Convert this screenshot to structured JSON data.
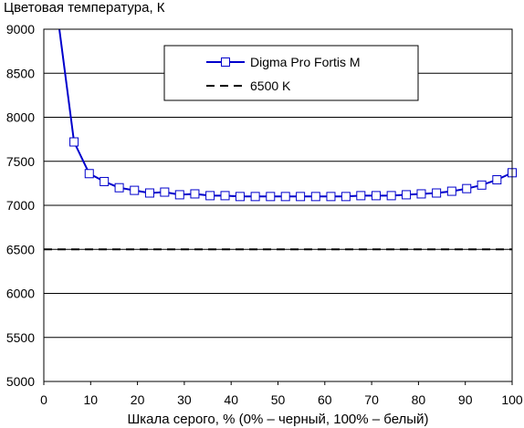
{
  "chart_data": {
    "type": "line",
    "title": "Цветовая температура, К",
    "xlabel": "Шкала серого, % (0% – черный, 100% – белый)",
    "ylabel": "",
    "xlim": [
      0,
      100
    ],
    "ylim": [
      5000,
      9000
    ],
    "x_ticks": [
      0,
      10,
      20,
      30,
      40,
      50,
      60,
      70,
      80,
      90,
      100
    ],
    "y_ticks": [
      5000,
      5500,
      6000,
      6500,
      7000,
      7500,
      8000,
      8500,
      9000
    ],
    "grid": "horizontal",
    "legend_position": "top-center",
    "series": [
      {
        "name": "Digma Pro Fortis M",
        "color": "#0000cc",
        "marker": "square-open",
        "x": [
          3.2,
          6.45,
          9.7,
          12.9,
          16.1,
          19.35,
          22.6,
          25.8,
          29.0,
          32.25,
          35.5,
          38.7,
          41.9,
          45.15,
          48.4,
          51.6,
          54.8,
          58.05,
          61.3,
          64.5,
          67.7,
          70.95,
          74.2,
          77.4,
          80.6,
          83.85,
          87.1,
          90.3,
          93.5,
          96.75,
          100
        ],
        "y": [
          9050,
          7720,
          7360,
          7270,
          7200,
          7170,
          7140,
          7150,
          7120,
          7130,
          7110,
          7110,
          7100,
          7100,
          7100,
          7100,
          7100,
          7100,
          7100,
          7100,
          7110,
          7110,
          7110,
          7120,
          7130,
          7140,
          7160,
          7190,
          7230,
          7290,
          7370
        ]
      },
      {
        "name": "6500 K",
        "color": "#000000",
        "dash": "dashed",
        "x": [
          0,
          100
        ],
        "y": [
          6500,
          6500
        ]
      }
    ]
  }
}
